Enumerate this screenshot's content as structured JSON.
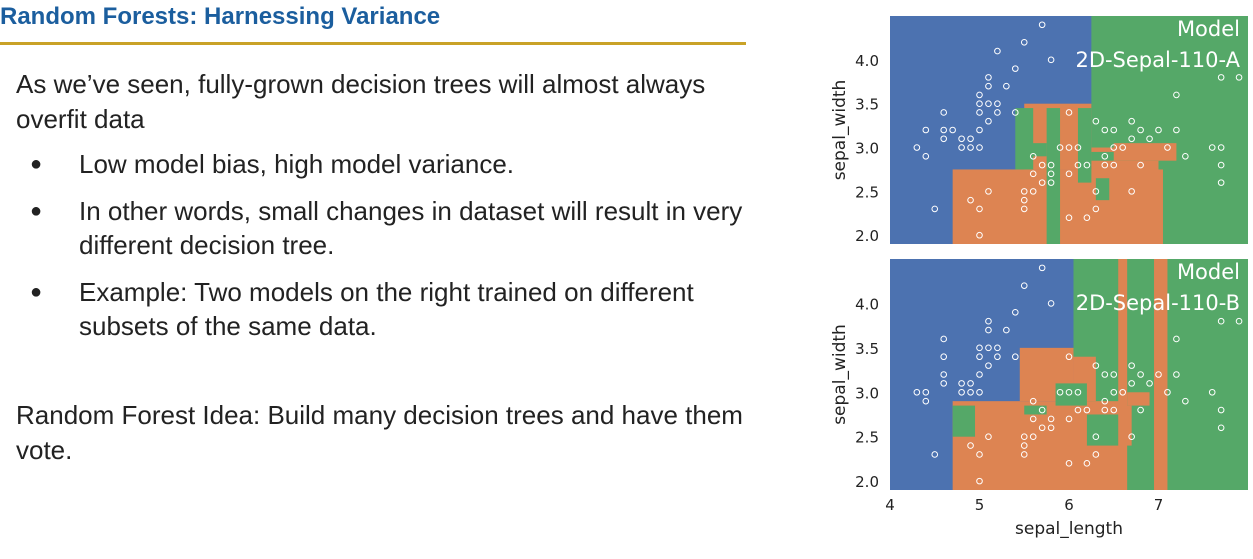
{
  "slide": {
    "title": "Random Forests: Harnessing Variance",
    "intro": "As we’ve seen, fully-grown decision trees will almost always overfit data",
    "bullets": [
      "Low model bias, high model variance.",
      "In other words, small changes in dataset will result in very different decision tree.",
      "Example: Two models on the right trained on different subsets of the same data."
    ],
    "bullet_glyph": "●",
    "rf_idea": "Random Forest Idea: Build many decision trees and have them vote."
  },
  "colors": {
    "title": "#1b5e9e",
    "rule": "#c9a227",
    "blue": "#4c72b0",
    "orange": "#dd8452",
    "green": "#55a868"
  },
  "chart_data": [
    {
      "type": "scatter",
      "title": "Model 2D-Sepal-110-A",
      "title_lines": [
        "Model",
        "2D-Sepal-110-A"
      ],
      "xlabel": "",
      "ylabel": "sepal_width",
      "xlim": [
        4.0,
        8.0
      ],
      "ylim": [
        1.9,
        4.5
      ],
      "xticks": [],
      "yticks": [
        "2.0",
        "2.5",
        "3.0",
        "3.5",
        "4.0"
      ],
      "regions": [
        {
          "class": "green",
          "x": [
            6.25,
            8.0
          ],
          "y": [
            1.9,
            4.5
          ]
        },
        {
          "class": "orange",
          "x": [
            4.7,
            7.05
          ],
          "y": [
            1.9,
            2.75
          ]
        },
        {
          "class": "orange",
          "x": [
            5.5,
            6.25
          ],
          "y": [
            2.75,
            3.5
          ]
        },
        {
          "class": "orange",
          "x": [
            6.25,
            7.0
          ],
          "y": [
            2.3,
            3.0
          ]
        },
        {
          "class": "green",
          "x": [
            5.4,
            5.6
          ],
          "y": [
            2.75,
            3.45
          ]
        },
        {
          "class": "green",
          "x": [
            5.75,
            5.9
          ],
          "y": [
            1.9,
            3.45
          ]
        },
        {
          "class": "green",
          "x": [
            5.55,
            5.75
          ],
          "y": [
            2.9,
            3.05
          ]
        },
        {
          "class": "green",
          "x": [
            6.1,
            6.25
          ],
          "y": [
            2.6,
            3.45
          ]
        },
        {
          "class": "green",
          "x": [
            6.3,
            6.45
          ],
          "y": [
            2.4,
            2.65
          ]
        },
        {
          "class": "green",
          "x": [
            6.25,
            7.0
          ],
          "y": [
            2.85,
            2.95
          ]
        },
        {
          "class": "orange",
          "x": [
            6.5,
            7.2
          ],
          "y": [
            2.85,
            3.05
          ]
        }
      ],
      "points": [
        [
          4.3,
          3.0
        ],
        [
          4.4,
          2.9
        ],
        [
          4.4,
          3.2
        ],
        [
          4.5,
          2.3
        ],
        [
          4.6,
          3.1
        ],
        [
          4.6,
          3.2
        ],
        [
          4.6,
          3.4
        ],
        [
          4.7,
          3.2
        ],
        [
          4.8,
          3.0
        ],
        [
          4.8,
          3.1
        ],
        [
          4.9,
          3.0
        ],
        [
          4.9,
          3.1
        ],
        [
          5.0,
          3.0
        ],
        [
          5.0,
          3.2
        ],
        [
          5.0,
          3.4
        ],
        [
          5.0,
          3.5
        ],
        [
          5.0,
          3.6
        ],
        [
          5.1,
          3.3
        ],
        [
          5.1,
          3.5
        ],
        [
          5.1,
          3.7
        ],
        [
          5.1,
          3.8
        ],
        [
          5.2,
          3.4
        ],
        [
          5.2,
          3.5
        ],
        [
          5.2,
          4.1
        ],
        [
          5.3,
          3.7
        ],
        [
          5.4,
          3.4
        ],
        [
          5.4,
          3.9
        ],
        [
          5.5,
          4.2
        ],
        [
          5.7,
          4.4
        ],
        [
          5.8,
          4.0
        ],
        [
          4.9,
          2.4
        ],
        [
          5.0,
          2.3
        ],
        [
          5.0,
          2.0
        ],
        [
          5.1,
          2.5
        ],
        [
          5.5,
          2.3
        ],
        [
          5.5,
          2.4
        ],
        [
          5.5,
          2.5
        ],
        [
          5.6,
          2.5
        ],
        [
          5.6,
          2.7
        ],
        [
          5.6,
          2.9
        ],
        [
          5.7,
          2.6
        ],
        [
          5.7,
          2.8
        ],
        [
          5.8,
          2.6
        ],
        [
          5.8,
          2.7
        ],
        [
          5.9,
          3.0
        ],
        [
          6.0,
          2.2
        ],
        [
          6.0,
          2.7
        ],
        [
          6.0,
          3.4
        ],
        [
          6.1,
          2.8
        ],
        [
          6.1,
          3.0
        ],
        [
          6.2,
          2.2
        ],
        [
          6.3,
          2.3
        ],
        [
          6.4,
          2.9
        ],
        [
          6.5,
          2.8
        ],
        [
          6.6,
          3.0
        ],
        [
          6.7,
          3.1
        ],
        [
          6.8,
          2.8
        ],
        [
          5.8,
          2.8
        ],
        [
          6.0,
          3.0
        ],
        [
          6.2,
          2.8
        ],
        [
          6.3,
          2.5
        ],
        [
          6.3,
          3.3
        ],
        [
          6.4,
          2.8
        ],
        [
          6.4,
          3.2
        ],
        [
          6.5,
          3.0
        ],
        [
          6.5,
          3.2
        ],
        [
          6.7,
          2.5
        ],
        [
          6.7,
          3.3
        ],
        [
          6.8,
          3.2
        ],
        [
          6.9,
          3.1
        ],
        [
          7.0,
          3.2
        ],
        [
          7.1,
          3.0
        ],
        [
          7.2,
          3.2
        ],
        [
          7.2,
          3.6
        ],
        [
          7.3,
          2.9
        ],
        [
          7.6,
          3.0
        ],
        [
          7.7,
          2.6
        ],
        [
          7.7,
          2.8
        ],
        [
          7.7,
          3.0
        ],
        [
          7.7,
          3.8
        ],
        [
          7.9,
          3.8
        ]
      ]
    },
    {
      "type": "scatter",
      "title": "Model 2D-Sepal-110-B",
      "title_lines": [
        "Model",
        "2D-Sepal-110-B"
      ],
      "xlabel": "sepal_length",
      "ylabel": "sepal_width",
      "xlim": [
        4.0,
        8.0
      ],
      "ylim": [
        1.9,
        4.5
      ],
      "xticks": [
        "4",
        "5",
        "6",
        "7"
      ],
      "yticks": [
        "2.0",
        "2.5",
        "3.0",
        "3.5",
        "4.0"
      ],
      "regions": [
        {
          "class": "green",
          "x": [
            6.05,
            8.0
          ],
          "y": [
            1.9,
            4.5
          ]
        },
        {
          "class": "orange",
          "x": [
            4.7,
            6.6
          ],
          "y": [
            1.9,
            2.9
          ]
        },
        {
          "class": "orange",
          "x": [
            5.45,
            6.05
          ],
          "y": [
            2.9,
            3.5
          ]
        },
        {
          "class": "orange",
          "x": [
            6.05,
            6.3
          ],
          "y": [
            2.9,
            3.4
          ]
        },
        {
          "class": "green",
          "x": [
            4.7,
            4.95
          ],
          "y": [
            2.5,
            2.85
          ]
        },
        {
          "class": "green",
          "x": [
            5.5,
            5.75
          ],
          "y": [
            2.75,
            2.85
          ]
        },
        {
          "class": "green",
          "x": [
            5.85,
            6.2
          ],
          "y": [
            2.85,
            3.1
          ]
        },
        {
          "class": "green",
          "x": [
            6.2,
            6.6
          ],
          "y": [
            2.4,
            2.75
          ]
        },
        {
          "class": "orange",
          "x": [
            6.55,
            6.65
          ],
          "y": [
            1.9,
            4.5
          ]
        },
        {
          "class": "orange",
          "x": [
            6.6,
            6.7
          ],
          "y": [
            2.4,
            2.85
          ]
        },
        {
          "class": "orange",
          "x": [
            6.65,
            6.9
          ],
          "y": [
            2.85,
            3.0
          ]
        },
        {
          "class": "orange",
          "x": [
            6.95,
            7.1
          ],
          "y": [
            1.9,
            4.5
          ]
        }
      ],
      "points": [
        [
          4.3,
          3.0
        ],
        [
          4.4,
          3.0
        ],
        [
          4.4,
          2.9
        ],
        [
          4.5,
          2.3
        ],
        [
          4.6,
          3.1
        ],
        [
          4.6,
          3.2
        ],
        [
          4.6,
          3.4
        ],
        [
          4.6,
          3.6
        ],
        [
          4.8,
          3.0
        ],
        [
          4.8,
          3.1
        ],
        [
          4.9,
          3.0
        ],
        [
          4.9,
          3.1
        ],
        [
          5.0,
          3.0
        ],
        [
          5.0,
          3.2
        ],
        [
          5.0,
          3.4
        ],
        [
          5.0,
          3.5
        ],
        [
          5.1,
          3.3
        ],
        [
          5.1,
          3.5
        ],
        [
          5.1,
          3.8
        ],
        [
          5.2,
          3.4
        ],
        [
          5.2,
          3.5
        ],
        [
          5.3,
          3.7
        ],
        [
          5.4,
          3.4
        ],
        [
          5.4,
          3.9
        ],
        [
          5.5,
          4.2
        ],
        [
          5.7,
          4.4
        ],
        [
          5.8,
          4.0
        ],
        [
          5.1,
          3.7
        ],
        [
          4.9,
          2.4
        ],
        [
          5.0,
          2.0
        ],
        [
          5.0,
          2.3
        ],
        [
          5.1,
          2.5
        ],
        [
          5.5,
          2.3
        ],
        [
          5.5,
          2.4
        ],
        [
          5.5,
          2.5
        ],
        [
          5.6,
          2.5
        ],
        [
          5.6,
          2.7
        ],
        [
          5.6,
          2.9
        ],
        [
          5.7,
          2.6
        ],
        [
          5.7,
          2.8
        ],
        [
          5.8,
          2.6
        ],
        [
          5.8,
          2.7
        ],
        [
          5.9,
          3.0
        ],
        [
          6.0,
          2.2
        ],
        [
          6.0,
          2.7
        ],
        [
          6.0,
          3.4
        ],
        [
          6.1,
          2.8
        ],
        [
          6.1,
          3.0
        ],
        [
          6.2,
          2.2
        ],
        [
          6.3,
          2.3
        ],
        [
          6.4,
          2.9
        ],
        [
          6.5,
          2.8
        ],
        [
          6.6,
          3.0
        ],
        [
          6.7,
          3.1
        ],
        [
          6.8,
          2.8
        ],
        [
          6.0,
          3.0
        ],
        [
          6.2,
          2.8
        ],
        [
          6.3,
          2.5
        ],
        [
          6.3,
          3.3
        ],
        [
          6.4,
          2.8
        ],
        [
          6.4,
          3.2
        ],
        [
          6.5,
          3.0
        ],
        [
          6.5,
          3.2
        ],
        [
          6.7,
          2.5
        ],
        [
          6.7,
          3.3
        ],
        [
          6.8,
          3.2
        ],
        [
          6.9,
          3.1
        ],
        [
          7.0,
          3.2
        ],
        [
          7.1,
          3.0
        ],
        [
          7.2,
          3.2
        ],
        [
          7.2,
          3.6
        ],
        [
          7.3,
          2.9
        ],
        [
          7.6,
          3.0
        ],
        [
          7.7,
          2.6
        ],
        [
          7.7,
          2.8
        ],
        [
          7.7,
          3.8
        ],
        [
          7.9,
          3.8
        ]
      ]
    }
  ]
}
